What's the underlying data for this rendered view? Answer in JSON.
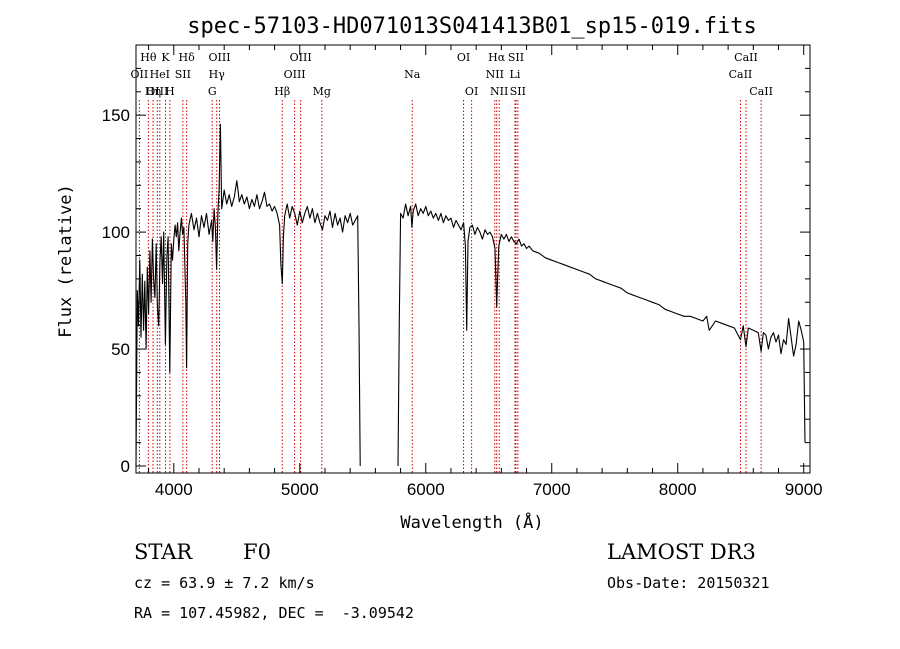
{
  "chart_data": {
    "type": "line",
    "title": "spec-57103-HD071013S041413B01_sp15-019.fits",
    "xlabel": "Wavelength (Å)",
    "ylabel": "Flux (relative)",
    "xlim": [
      3700,
      9050
    ],
    "ylim": [
      -3,
      180
    ],
    "x_ticks": [
      4000,
      5000,
      6000,
      7000,
      8000,
      9000
    ],
    "y_ticks": [
      0,
      50,
      100,
      150
    ],
    "series": [
      {
        "name": "flux",
        "segments": [
          [
            [
              3700,
              0
            ],
            [
              3710,
              75
            ],
            [
              3720,
              60
            ],
            [
              3730,
              88
            ],
            [
              3740,
              55
            ],
            [
              3750,
              82
            ],
            [
              3760,
              58
            ],
            [
              3770,
              79
            ],
            [
              3780,
              50
            ],
            [
              3790,
              85
            ],
            [
              3800,
              65
            ],
            [
              3810,
              92
            ],
            [
              3820,
              70
            ],
            [
              3830,
              97
            ],
            [
              3840,
              80
            ],
            [
              3850,
              72
            ],
            [
              3860,
              95
            ],
            [
              3870,
              68
            ],
            [
              3880,
              60
            ],
            [
              3890,
              87
            ],
            [
              3900,
              98
            ],
            [
              3910,
              78
            ],
            [
              3920,
              100
            ],
            [
              3933,
              52
            ],
            [
              3945,
              90
            ],
            [
              3955,
              98
            ],
            [
              3968,
              40
            ],
            [
              3980,
              95
            ],
            [
              3990,
              88
            ],
            [
              4000,
              97
            ],
            [
              4010,
              103
            ],
            [
              4020,
              98
            ],
            [
              4030,
              104
            ],
            [
              4040,
              92
            ],
            [
              4050,
              100
            ],
            [
              4060,
              106
            ],
            [
              4070,
              99
            ],
            [
              4080,
              102
            ],
            [
              4095,
              70
            ],
            [
              4102,
              42
            ],
            [
              4110,
              95
            ],
            [
              4120,
              103
            ],
            [
              4140,
              108
            ],
            [
              4160,
              101
            ],
            [
              4180,
              106
            ],
            [
              4200,
              98
            ],
            [
              4220,
              107
            ],
            [
              4240,
              102
            ],
            [
              4260,
              108
            ],
            [
              4280,
              99
            ],
            [
              4300,
              105
            ],
            [
              4310,
              96
            ],
            [
              4320,
              110
            ],
            [
              4330,
              102
            ],
            [
              4340,
              84
            ],
            [
              4350,
              108
            ],
            [
              4360,
              118
            ],
            [
              4370,
              146
            ],
            [
              4380,
              110
            ],
            [
              4400,
              118
            ],
            [
              4420,
              112
            ],
            [
              4440,
              116
            ],
            [
              4460,
              111
            ],
            [
              4480,
              115
            ],
            [
              4500,
              122
            ],
            [
              4510,
              118
            ],
            [
              4520,
              113
            ],
            [
              4540,
              116
            ],
            [
              4560,
              112
            ],
            [
              4580,
              115
            ],
            [
              4600,
              110
            ],
            [
              4620,
              114
            ],
            [
              4640,
              111
            ],
            [
              4660,
              116
            ],
            [
              4680,
              110
            ],
            [
              4700,
              113
            ],
            [
              4720,
              117
            ],
            [
              4740,
              111
            ],
            [
              4760,
              112
            ],
            [
              4780,
              109
            ],
            [
              4800,
              111
            ],
            [
              4820,
              108
            ],
            [
              4840,
              103
            ],
            [
              4850,
              86
            ],
            [
              4861,
              78
            ],
            [
              4870,
              98
            ],
            [
              4880,
              107
            ],
            [
              4900,
              112
            ],
            [
              4920,
              106
            ],
            [
              4940,
              111
            ],
            [
              4960,
              108
            ],
            [
              4980,
              103
            ],
            [
              5000,
              109
            ],
            [
              5020,
              104
            ],
            [
              5040,
              108
            ],
            [
              5060,
              111
            ],
            [
              5080,
              106
            ],
            [
              5100,
              110
            ],
            [
              5120,
              104
            ],
            [
              5140,
              108
            ],
            [
              5160,
              104
            ],
            [
              5180,
              101
            ],
            [
              5200,
              107
            ],
            [
              5220,
              105
            ],
            [
              5240,
              109
            ],
            [
              5260,
              102
            ],
            [
              5280,
              108
            ],
            [
              5300,
              103
            ],
            [
              5320,
              106
            ],
            [
              5340,
              100
            ],
            [
              5360,
              107
            ],
            [
              5380,
              104
            ],
            [
              5400,
              108
            ],
            [
              5420,
              103
            ],
            [
              5440,
              105
            ],
            [
              5460,
              107
            ],
            [
              5470,
              60
            ],
            [
              5480,
              0
            ]
          ],
          [
            [
              5780,
              0
            ],
            [
              5790,
              62
            ],
            [
              5800,
              108
            ],
            [
              5820,
              106
            ],
            [
              5840,
              112
            ],
            [
              5860,
              107
            ],
            [
              5880,
              111
            ],
            [
              5890,
              102
            ],
            [
              5900,
              109
            ],
            [
              5920,
              112
            ],
            [
              5940,
              107
            ],
            [
              5960,
              110
            ],
            [
              5980,
              108
            ],
            [
              6000,
              111
            ],
            [
              6020,
              107
            ],
            [
              6040,
              109
            ],
            [
              6060,
              106
            ],
            [
              6080,
              108
            ],
            [
              6100,
              105
            ],
            [
              6120,
              108
            ],
            [
              6140,
              104
            ],
            [
              6160,
              107
            ],
            [
              6180,
              105
            ],
            [
              6200,
              106
            ],
            [
              6220,
              102
            ],
            [
              6240,
              105
            ],
            [
              6260,
              103
            ],
            [
              6280,
              101
            ],
            [
              6300,
              104
            ],
            [
              6315,
              94
            ],
            [
              6325,
              58
            ],
            [
              6335,
              96
            ],
            [
              6350,
              102
            ],
            [
              6370,
              103
            ],
            [
              6390,
              99
            ],
            [
              6410,
              102
            ],
            [
              6430,
              100
            ],
            [
              6450,
              97
            ],
            [
              6470,
              101
            ],
            [
              6490,
              99
            ],
            [
              6510,
              100
            ],
            [
              6530,
              98
            ],
            [
              6550,
              93
            ],
            [
              6563,
              68
            ],
            [
              6570,
              80
            ],
            [
              6580,
              94
            ],
            [
              6600,
              99
            ],
            [
              6620,
              97
            ],
            [
              6640,
              99
            ],
            [
              6660,
              96
            ],
            [
              6680,
              98
            ],
            [
              6700,
              96
            ],
            [
              6720,
              95
            ],
            [
              6740,
              97
            ],
            [
              6760,
              94
            ],
            [
              6780,
              95
            ],
            [
              6800,
              93
            ],
            [
              6820,
              94
            ],
            [
              6850,
              92
            ],
            [
              6900,
              91
            ],
            [
              6950,
              89
            ],
            [
              7000,
              88
            ],
            [
              7050,
              87
            ],
            [
              7100,
              86
            ],
            [
              7150,
              85
            ],
            [
              7200,
              84
            ],
            [
              7250,
              83
            ],
            [
              7300,
              82
            ],
            [
              7350,
              80
            ],
            [
              7400,
              79
            ],
            [
              7450,
              78
            ],
            [
              7500,
              77
            ],
            [
              7550,
              76
            ],
            [
              7600,
              74
            ],
            [
              7650,
              73
            ],
            [
              7700,
              72
            ],
            [
              7750,
              71
            ],
            [
              7800,
              70
            ],
            [
              7850,
              69
            ],
            [
              7900,
              67
            ],
            [
              7950,
              66
            ],
            [
              8000,
              65
            ],
            [
              8050,
              64
            ],
            [
              8100,
              64
            ],
            [
              8150,
              63
            ],
            [
              8200,
              62
            ],
            [
              8230,
              64
            ],
            [
              8250,
              58
            ],
            [
              8300,
              62
            ],
            [
              8350,
              61
            ],
            [
              8400,
              60
            ],
            [
              8450,
              59
            ],
            [
              8498,
              54
            ],
            [
              8520,
              60
            ],
            [
              8542,
              51
            ],
            [
              8560,
              59
            ],
            [
              8600,
              58
            ],
            [
              8640,
              57
            ],
            [
              8662,
              49
            ],
            [
              8680,
              57
            ],
            [
              8700,
              56
            ],
            [
              8720,
              50
            ],
            [
              8740,
              55
            ],
            [
              8760,
              57
            ],
            [
              8780,
              53
            ],
            [
              8800,
              56
            ],
            [
              8820,
              48
            ],
            [
              8840,
              54
            ],
            [
              8860,
              52
            ],
            [
              8880,
              63
            ],
            [
              8900,
              55
            ],
            [
              8920,
              47
            ],
            [
              8940,
              52
            ],
            [
              8960,
              62
            ],
            [
              8980,
              58
            ],
            [
              9000,
              53
            ],
            [
              9010,
              10
            ]
          ]
        ]
      }
    ],
    "line_markers": [
      {
        "label": "Hθ",
        "wl": 3798,
        "row": 1
      },
      {
        "label": "OII",
        "wl": 3727,
        "row": 2
      },
      {
        "label": "OIII",
        "wl": 3869,
        "row": 3
      },
      {
        "label": "Hη",
        "wl": 3835,
        "row": 3
      },
      {
        "label": "HeI",
        "wl": 3889,
        "row": 2
      },
      {
        "label": "K",
        "wl": 3934,
        "row": 1
      },
      {
        "label": "H",
        "wl": 3969,
        "row": 3
      },
      {
        "label": "SII",
        "wl": 4072,
        "row": 2
      },
      {
        "label": "Hδ",
        "wl": 4102,
        "row": 1
      },
      {
        "label": "G",
        "wl": 4305,
        "row": 3
      },
      {
        "label": "OIII",
        "wl": 4363,
        "row": 1
      },
      {
        "label": "Hγ",
        "wl": 4341,
        "row": 2
      },
      {
        "label": "Hβ",
        "wl": 4861,
        "row": 3
      },
      {
        "label": "OIII",
        "wl": 5007,
        "row": 1
      },
      {
        "label": "OIII",
        "wl": 4959,
        "row": 2
      },
      {
        "label": "Mg",
        "wl": 5175,
        "row": 3
      },
      {
        "label": "Na",
        "wl": 5893,
        "row": 2
      },
      {
        "label": "OI",
        "wl": 6300,
        "row": 1
      },
      {
        "label": "OI",
        "wl": 6364,
        "row": 3
      },
      {
        "label": "Hα",
        "wl": 6563,
        "row": 1
      },
      {
        "label": "NII",
        "wl": 6548,
        "row": 2
      },
      {
        "label": "NII",
        "wl": 6583,
        "row": 3
      },
      {
        "label": "SII",
        "wl": 6716,
        "row": 1
      },
      {
        "label": "Li",
        "wl": 6708,
        "row": 2
      },
      {
        "label": "SII",
        "wl": 6731,
        "row": 3
      },
      {
        "label": "CaII",
        "wl": 8542,
        "row": 1
      },
      {
        "label": "CaII",
        "wl": 8498,
        "row": 2
      },
      {
        "label": "CaII",
        "wl": 8662,
        "row": 3
      }
    ]
  },
  "info": {
    "object_class": "STAR",
    "subclass": "F0",
    "survey": "LAMOST DR3",
    "redshift": "cz = 63.9 ± 7.2 km/s",
    "obs_date": "Obs-Date: 20150321",
    "coords": "RA = 107.45982, DEC =  -3.09542"
  }
}
